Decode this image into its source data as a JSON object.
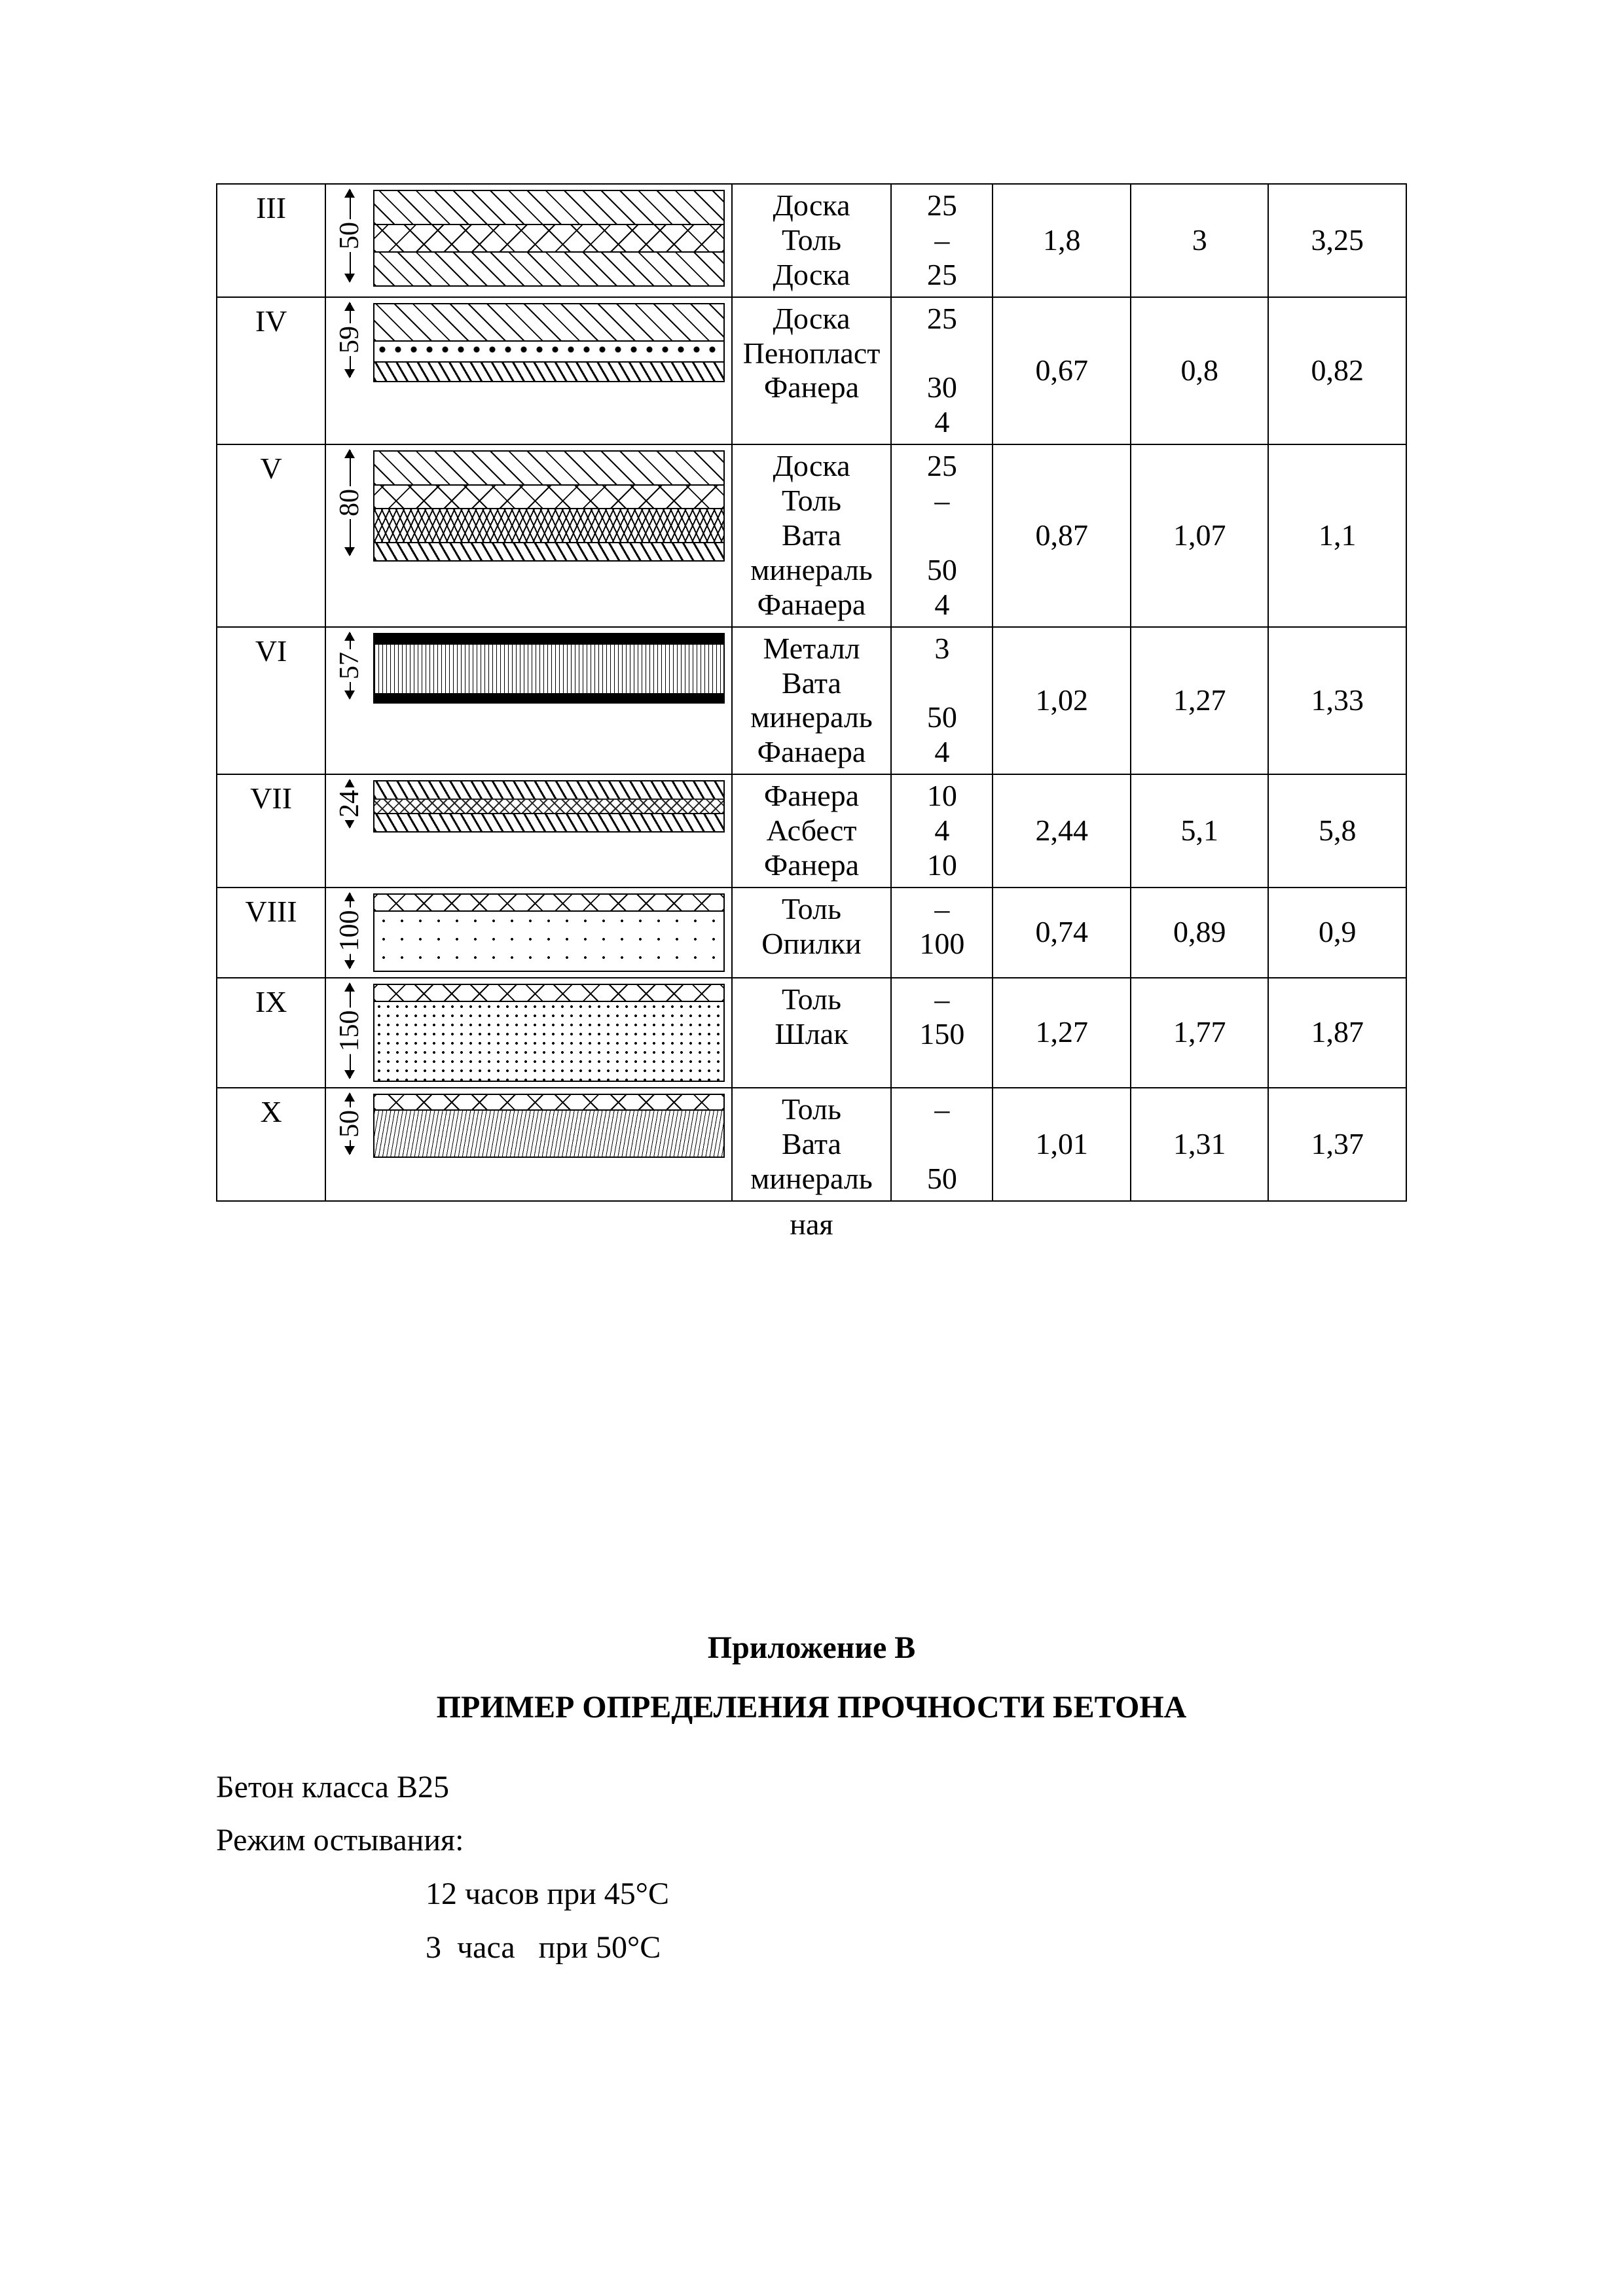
{
  "rows": [
    {
      "roman": "III",
      "dim": "50",
      "layers": [
        {
          "pattern": "p-diag",
          "h": 50
        },
        {
          "pattern": "p-x",
          "h": 40
        },
        {
          "pattern": "p-diag",
          "h": 50
        }
      ],
      "materials": "Доска\nТоль\nДоска",
      "thick": "25\n–\n25",
      "v1": "1,8",
      "v2": "3",
      "v3": "3,25"
    },
    {
      "roman": "IV",
      "dim": "59",
      "layers": [
        {
          "pattern": "p-diag",
          "h": 55
        },
        {
          "pattern": "p-circles",
          "h": 30
        },
        {
          "pattern": "p-diag2",
          "h": 28
        }
      ],
      "materials": "Доска\nПенопласт\nФанера",
      "thick": "25\n\n30\n4",
      "v1": "0,67",
      "v2": "0,8",
      "v3": "0,82"
    },
    {
      "roman": "V",
      "dim": "80",
      "layers": [
        {
          "pattern": "p-diag",
          "h": 50
        },
        {
          "pattern": "p-x",
          "h": 34
        },
        {
          "pattern": "p-zigzag",
          "h": 50
        },
        {
          "pattern": "p-diag2",
          "h": 26
        }
      ],
      "materials": "Доска\nТоль\nВата\nминераль\nФанаера",
      "thick": "25\n–\n\n50\n4",
      "v1": "0,87",
      "v2": "1,07",
      "v3": "1,1"
    },
    {
      "roman": "VI",
      "dim": "57",
      "layers": [
        {
          "pattern": "p-solid",
          "h": 14
        },
        {
          "pattern": "p-vlines",
          "h": 74
        },
        {
          "pattern": "p-solid",
          "h": 12
        }
      ],
      "materials": "Металл\nВата\nминераль\nФанаера",
      "thick": "3\n\n50\n4",
      "v1": "1,02",
      "v2": "1,27",
      "v3": "1,33"
    },
    {
      "roman": "VII",
      "dim": "24",
      "layers": [
        {
          "pattern": "p-diag2",
          "h": 26
        },
        {
          "pattern": "p-crisscross",
          "h": 20
        },
        {
          "pattern": "p-diag2",
          "h": 26
        }
      ],
      "materials": "Фанера\nАсбест\nФанера",
      "thick": "10\n4\n10",
      "v1": "2,44",
      "v2": "5,1",
      "v3": "5,8"
    },
    {
      "roman": "VIII",
      "dim": "100",
      "layers": [
        {
          "pattern": "p-x",
          "h": 24
        },
        {
          "pattern": "p-dots-sparse",
          "h": 90
        }
      ],
      "materials": "Толь\nОпилки",
      "thick": "–\n100",
      "v1": "0,74",
      "v2": "0,89",
      "v3": "0,9"
    },
    {
      "roman": "IX",
      "dim": "150",
      "layers": [
        {
          "pattern": "p-x",
          "h": 24
        },
        {
          "pattern": "p-dots",
          "h": 120
        }
      ],
      "materials": "Толь\nШлак",
      "thick": "–\n150",
      "v1": "1,27",
      "v2": "1,77",
      "v3": "1,87"
    },
    {
      "roman": "X",
      "dim": "50",
      "layers": [
        {
          "pattern": "p-x",
          "h": 22
        },
        {
          "pattern": "p-fine",
          "h": 70
        }
      ],
      "materials": "Толь\nВата\nминераль",
      "thick": "–\n\n50",
      "v1": "1,01",
      "v2": "1,31",
      "v3": "1,37"
    }
  ],
  "underhang": "ная",
  "appendix": {
    "title": "Приложение В",
    "subtitle": "ПРИМЕР ОПРЕДЕЛЕНИЯ ПРОЧНОСТИ БЕТОНА",
    "line1": "Бетон класса В25",
    "line2": "Режим остывания:",
    "line3": "12 часов при 45°С",
    "line4": "3  часа   при 50°С"
  }
}
